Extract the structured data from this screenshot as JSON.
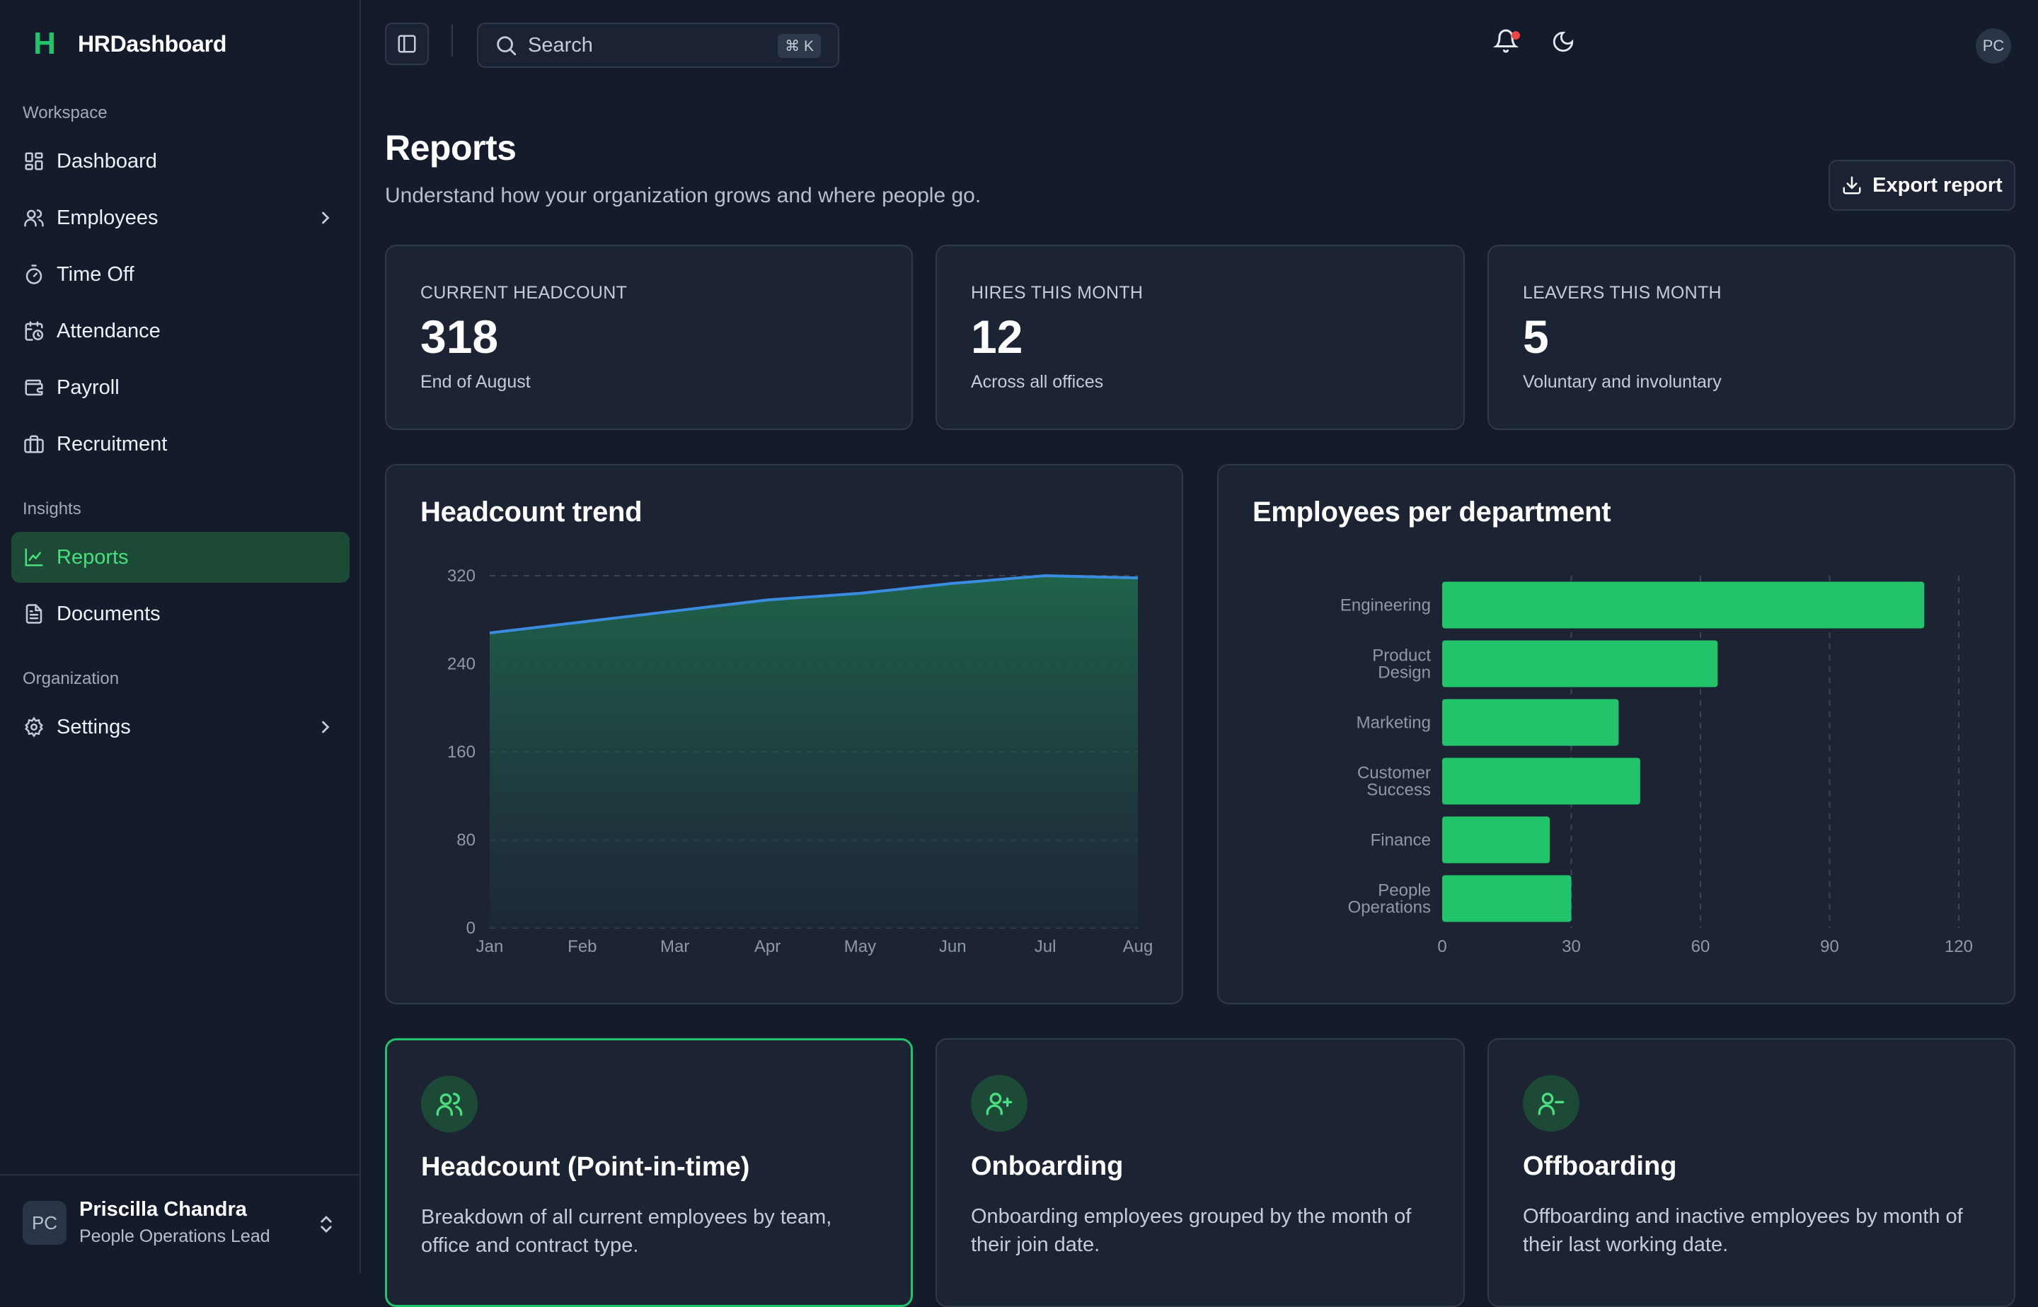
{
  "app": {
    "name": "HRDashboard",
    "logo_letter": "H"
  },
  "sidebar": {
    "sections": [
      {
        "label": "Workspace"
      },
      {
        "label": "Insights"
      },
      {
        "label": "Organization"
      }
    ],
    "items": [
      {
        "label": "Dashboard",
        "icon": "dashboard-icon"
      },
      {
        "label": "Employees",
        "icon": "users-icon",
        "has_submenu": true
      },
      {
        "label": "Time Off",
        "icon": "timer-icon"
      },
      {
        "label": "Attendance",
        "icon": "calendar-clock-icon"
      },
      {
        "label": "Payroll",
        "icon": "wallet-icon"
      },
      {
        "label": "Recruitment",
        "icon": "briefcase-icon"
      },
      {
        "label": "Reports",
        "icon": "chart-line-icon",
        "active": true
      },
      {
        "label": "Documents",
        "icon": "file-text-icon"
      },
      {
        "label": "Settings",
        "icon": "gear-icon",
        "has_submenu": true
      }
    ],
    "user": {
      "initials": "PC",
      "name": "Priscilla Chandra",
      "role": "People Operations Lead"
    }
  },
  "topbar": {
    "search_placeholder": "Search",
    "shortcut": "⌘ K",
    "avatar_initials": "PC"
  },
  "page": {
    "title": "Reports",
    "subtitle": "Understand how your organization grows and where people go.",
    "export_label": "Export report"
  },
  "stats": [
    {
      "label": "CURRENT HEADCOUNT",
      "value": "318",
      "sub": "End of August"
    },
    {
      "label": "HIRES THIS MONTH",
      "value": "12",
      "sub": "Across all offices"
    },
    {
      "label": "LEAVERS THIS MONTH",
      "value": "5",
      "sub": "Voluntary and involuntary"
    }
  ],
  "chart_data": [
    {
      "type": "area",
      "title": "Headcount trend",
      "x": [
        "Jan",
        "Feb",
        "Mar",
        "Apr",
        "May",
        "Jun",
        "Jul",
        "Aug"
      ],
      "values": [
        268,
        278,
        288,
        298,
        304,
        313,
        320,
        318
      ],
      "yticks": [
        0,
        80,
        160,
        240,
        320
      ],
      "ylim": [
        0,
        320
      ],
      "grid": true,
      "color": "#3b8be0"
    },
    {
      "type": "bar",
      "orientation": "horizontal",
      "title": "Employees per department",
      "categories": [
        "Engineering",
        "Product Design",
        "Marketing",
        "Customer Success",
        "Finance",
        "People Operations"
      ],
      "category_lines": [
        [
          "Engineering"
        ],
        [
          "Product",
          "Design"
        ],
        [
          "Marketing"
        ],
        [
          "Customer",
          "Success"
        ],
        [
          "Finance"
        ],
        [
          "People",
          "Operations"
        ]
      ],
      "values": [
        112,
        64,
        41,
        46,
        25,
        30
      ],
      "xticks": [
        0,
        30,
        60,
        90,
        120
      ],
      "xlim": [
        0,
        120
      ],
      "grid": true,
      "color": "#22c36b"
    }
  ],
  "report_cards": [
    {
      "icon": "users-icon",
      "title": "Headcount (Point-in-time)",
      "description": "Breakdown of all current employees by team, office and contract type.",
      "selected": true
    },
    {
      "icon": "user-plus-icon",
      "title": "Onboarding",
      "description": "Onboarding employees grouped by the month of their join date."
    },
    {
      "icon": "user-minus-icon",
      "title": "Offboarding",
      "description": "Offboarding and inactive employees by month of their last working date."
    }
  ],
  "colors": {
    "accent": "#22c36b",
    "background": "#141b2b",
    "card": "#1c2434",
    "notification_dot": "#ef4444"
  }
}
